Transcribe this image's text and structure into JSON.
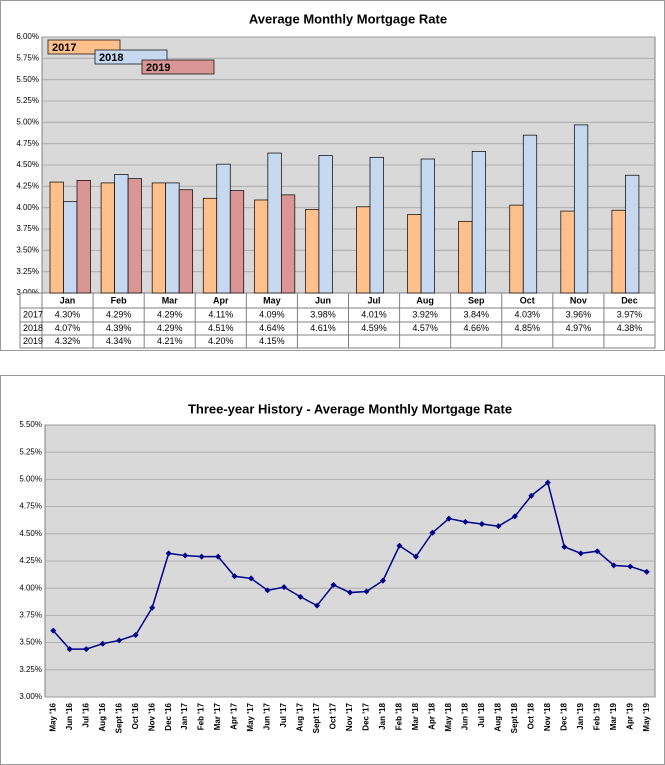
{
  "chart_data": [
    {
      "type": "bar",
      "title": "Average Monthly Mortgage Rate",
      "categories": [
        "Jan",
        "Feb",
        "Mar",
        "Apr",
        "May",
        "Jun",
        "Jul",
        "Aug",
        "Sep",
        "Oct",
        "Nov",
        "Dec"
      ],
      "series": [
        {
          "name": "2017",
          "color": "#ffc08c",
          "values": [
            4.3,
            4.29,
            4.29,
            4.11,
            4.09,
            3.98,
            4.01,
            3.92,
            3.84,
            4.03,
            3.96,
            3.97
          ],
          "value_labels": [
            "4.30%",
            "4.29%",
            "4.29%",
            "4.11%",
            "4.09%",
            "3.98%",
            "4.01%",
            "3.92%",
            "3.84%",
            "4.03%",
            "3.96%",
            "3.97%"
          ]
        },
        {
          "name": "2018",
          "color": "#c6d9f1",
          "values": [
            4.07,
            4.39,
            4.29,
            4.51,
            4.64,
            4.61,
            4.59,
            4.57,
            4.66,
            4.85,
            4.97,
            4.38
          ],
          "value_labels": [
            "4.07%",
            "4.39%",
            "4.29%",
            "4.51%",
            "4.64%",
            "4.61%",
            "4.59%",
            "4.57%",
            "4.66%",
            "4.85%",
            "4.97%",
            "4.38%"
          ]
        },
        {
          "name": "2019",
          "color": "#d99694",
          "values": [
            4.32,
            4.34,
            4.21,
            4.2,
            4.15,
            null,
            null,
            null,
            null,
            null,
            null,
            null
          ],
          "value_labels": [
            "4.32%",
            "4.34%",
            "4.21%",
            "4.20%",
            "4.15%",
            null,
            null,
            null,
            null,
            null,
            null,
            null
          ]
        }
      ],
      "ylim": [
        3,
        6
      ],
      "yticks": [
        {
          "value": 3,
          "label": "3.00%"
        },
        {
          "value": 3.25,
          "label": "3.25%"
        },
        {
          "value": 3.5,
          "label": "3.50%"
        },
        {
          "value": 3.75,
          "label": "3.75%"
        },
        {
          "value": 4,
          "label": "4.00%"
        },
        {
          "value": 4.25,
          "label": "4.25%"
        },
        {
          "value": 4.5,
          "label": "4.50%"
        },
        {
          "value": 4.75,
          "label": "4.75%"
        },
        {
          "value": 5,
          "label": "5.00%"
        },
        {
          "value": 5.25,
          "label": "5.25%"
        },
        {
          "value": 5.5,
          "label": "5.50%"
        },
        {
          "value": 5.75,
          "label": "5.75%"
        },
        {
          "value": 6,
          "label": "6.00%"
        }
      ],
      "grid": true
    },
    {
      "type": "line",
      "title": "Three-year History - Average Monthly Mortgage Rate",
      "categories": [
        "May '16",
        "Jun '16",
        "Jul '16",
        "Aug '16",
        "Sept '16",
        "Oct '16",
        "Nov '16",
        "Dec '16",
        "Jan '17",
        "Feb '17",
        "Mar '17",
        "Apr '17",
        "May '17",
        "Jun '17",
        "Jul '17",
        "Aug '17",
        "Sept '17",
        "Oct '17",
        "Nov '17",
        "Dec '17",
        "Jan '18",
        "Feb '18",
        "Mar '18",
        "Apr '18",
        "May '18",
        "Jun '18",
        "Jul '18",
        "Aug '18",
        "Sept '18",
        "Oct '18",
        "Nov '18",
        "Dec '18",
        "Jan '19",
        "Feb '19",
        "Mar '19",
        "Apr '19",
        "May '19"
      ],
      "color": "#00008b",
      "values": [
        3.61,
        3.44,
        3.44,
        3.49,
        3.52,
        3.57,
        3.82,
        4.32,
        4.3,
        4.29,
        4.29,
        4.11,
        4.09,
        3.98,
        4.01,
        3.92,
        3.84,
        4.03,
        3.96,
        3.97,
        4.07,
        4.39,
        4.29,
        4.51,
        4.64,
        4.61,
        4.59,
        4.57,
        4.66,
        4.85,
        4.97,
        4.38,
        4.32,
        4.34,
        4.21,
        4.2,
        4.15
      ],
      "ylim": [
        3,
        5.5
      ],
      "yticks": [
        {
          "value": 3,
          "label": "3.00%"
        },
        {
          "value": 3.25,
          "label": "3.25%"
        },
        {
          "value": 3.5,
          "label": "3.50%"
        },
        {
          "value": 3.75,
          "label": "3.75%"
        },
        {
          "value": 4,
          "label": "4.00%"
        },
        {
          "value": 4.25,
          "label": "4.25%"
        },
        {
          "value": 4.5,
          "label": "4.50%"
        },
        {
          "value": 4.75,
          "label": "4.75%"
        },
        {
          "value": 5,
          "label": "5.00%"
        },
        {
          "value": 5.25,
          "label": "5.25%"
        },
        {
          "value": 5.5,
          "label": "5.50%"
        }
      ],
      "grid": true
    }
  ]
}
